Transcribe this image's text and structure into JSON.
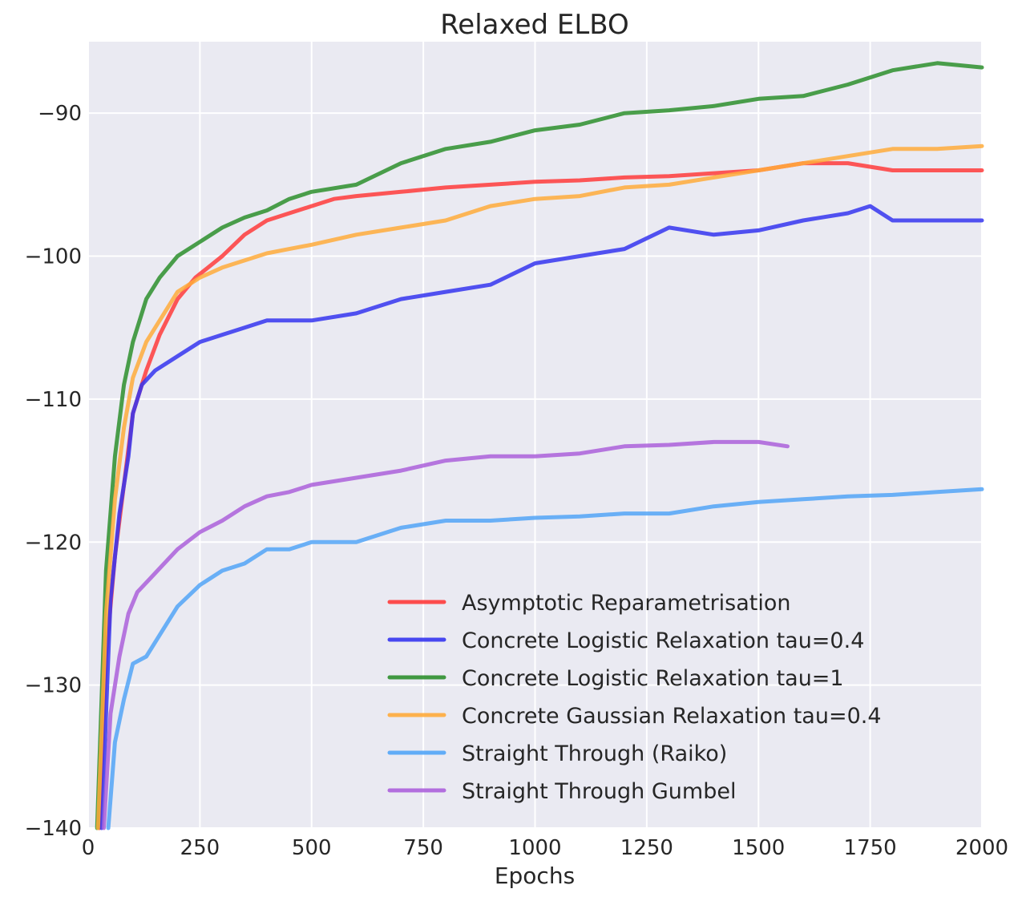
{
  "chart_data": {
    "type": "line",
    "title": "Relaxed ELBO",
    "xlabel": "Epochs",
    "ylabel": "",
    "xlim": [
      0,
      2000
    ],
    "ylim": [
      -140,
      -85
    ],
    "xticks": [
      0,
      250,
      500,
      750,
      1000,
      1250,
      1500,
      1750,
      2000
    ],
    "yticks": [
      -140,
      -130,
      -120,
      -110,
      -100,
      -90
    ],
    "xtick_labels": [
      "0",
      "250",
      "500",
      "750",
      "1000",
      "1250",
      "1500",
      "1750",
      "2000"
    ],
    "ytick_labels": [
      "−140",
      "−130",
      "−120",
      "−110",
      "−100",
      "−90"
    ],
    "grid": true,
    "legend_position": "lower-right",
    "series": [
      {
        "name": "Asymptotic Reparametrisation",
        "color": "#ff3b3b",
        "x": [
          25,
          40,
          60,
          80,
          100,
          130,
          160,
          200,
          240,
          300,
          350,
          400,
          450,
          500,
          550,
          600,
          700,
          800,
          900,
          1000,
          1100,
          1200,
          1300,
          1400,
          1500,
          1600,
          1700,
          1800,
          1900,
          2000
        ],
        "y": [
          -140,
          -128,
          -121,
          -116,
          -111,
          -108,
          -105.5,
          -103,
          -101.5,
          -100,
          -98.5,
          -97.5,
          -97,
          -96.5,
          -96,
          -95.8,
          -95.5,
          -95.2,
          -95,
          -94.8,
          -94.7,
          -94.5,
          -94.4,
          -94.2,
          -94,
          -93.5,
          -93.5,
          -94,
          -94,
          -94
        ]
      },
      {
        "name": "Concrete Logistic Relaxation tau=0.4",
        "color": "#3535f0",
        "x": [
          30,
          50,
          70,
          90,
          100,
          120,
          150,
          200,
          250,
          300,
          350,
          400,
          450,
          500,
          600,
          700,
          800,
          900,
          1000,
          1100,
          1200,
          1300,
          1400,
          1500,
          1600,
          1700,
          1750,
          1800,
          1900,
          2000
        ],
        "y": [
          -140,
          -124,
          -118,
          -114,
          -111,
          -109,
          -108,
          -107,
          -106,
          -105.5,
          -105,
          -104.5,
          -104.5,
          -104.5,
          -104,
          -103,
          -102.5,
          -102,
          -100.5,
          -100,
          -99.5,
          -98,
          -98.5,
          -98.2,
          -97.5,
          -97,
          -96.5,
          -97.5,
          -97.5,
          -97.5
        ]
      },
      {
        "name": "Concrete Logistic Relaxation tau=1",
        "color": "#2d8f2d",
        "x": [
          20,
          40,
          60,
          80,
          100,
          130,
          160,
          200,
          250,
          300,
          350,
          400,
          450,
          500,
          600,
          700,
          800,
          900,
          1000,
          1100,
          1200,
          1300,
          1400,
          1500,
          1600,
          1700,
          1800,
          1900,
          2000
        ],
        "y": [
          -140,
          -122,
          -114,
          -109,
          -106,
          -103,
          -101.5,
          -100,
          -99,
          -98,
          -97.3,
          -96.8,
          -96,
          -95.5,
          -95,
          -93.5,
          -92.5,
          -92,
          -91.2,
          -90.8,
          -90,
          -89.8,
          -89.5,
          -89,
          -88.8,
          -88,
          -87,
          -86.5,
          -86.8
        ]
      },
      {
        "name": "Concrete Gaussian Relaxation tau=0.4",
        "color": "#ffab3b",
        "x": [
          22,
          40,
          60,
          80,
          100,
          130,
          160,
          200,
          250,
          300,
          350,
          400,
          450,
          500,
          600,
          700,
          800,
          900,
          1000,
          1100,
          1200,
          1300,
          1400,
          1500,
          1600,
          1700,
          1800,
          1900,
          2000
        ],
        "y": [
          -140,
          -125,
          -117,
          -112,
          -108.5,
          -106,
          -104.5,
          -102.5,
          -101.5,
          -100.8,
          -100.3,
          -99.8,
          -99.5,
          -99.2,
          -98.5,
          -98,
          -97.5,
          -96.5,
          -96,
          -95.8,
          -95.2,
          -95,
          -94.5,
          -94,
          -93.5,
          -93,
          -92.5,
          -92.5,
          -92.3
        ]
      },
      {
        "name": "Straight Through (Raiko)",
        "color": "#52a5f7",
        "x": [
          45,
          60,
          80,
          100,
          130,
          160,
          200,
          250,
          300,
          350,
          400,
          450,
          500,
          600,
          700,
          800,
          900,
          1000,
          1100,
          1200,
          1300,
          1400,
          1500,
          1600,
          1700,
          1800,
          1900,
          2000
        ],
        "y": [
          -140,
          -134,
          -131,
          -128.5,
          -128,
          -126.5,
          -124.5,
          -123,
          -122,
          -121.5,
          -120.5,
          -120.5,
          -120,
          -120,
          -119,
          -118.5,
          -118.5,
          -118.3,
          -118.2,
          -118,
          -118,
          -117.5,
          -117.2,
          -117,
          -116.8,
          -116.7,
          -116.5,
          -116.3
        ]
      },
      {
        "name": "Straight Through Gumbel",
        "color": "#ac60db",
        "x": [
          35,
          50,
          70,
          90,
          110,
          140,
          170,
          200,
          250,
          300,
          350,
          400,
          450,
          500,
          600,
          700,
          800,
          900,
          1000,
          1100,
          1200,
          1300,
          1400,
          1500,
          1565
        ],
        "y": [
          -140,
          -132,
          -128,
          -125,
          -123.5,
          -122.5,
          -121.5,
          -120.5,
          -119.3,
          -118.5,
          -117.5,
          -116.8,
          -116.5,
          -116,
          -115.5,
          -115,
          -114.3,
          -114,
          -114,
          -113.8,
          -113.3,
          -113.2,
          -113,
          -113,
          -113.3
        ]
      }
    ]
  }
}
